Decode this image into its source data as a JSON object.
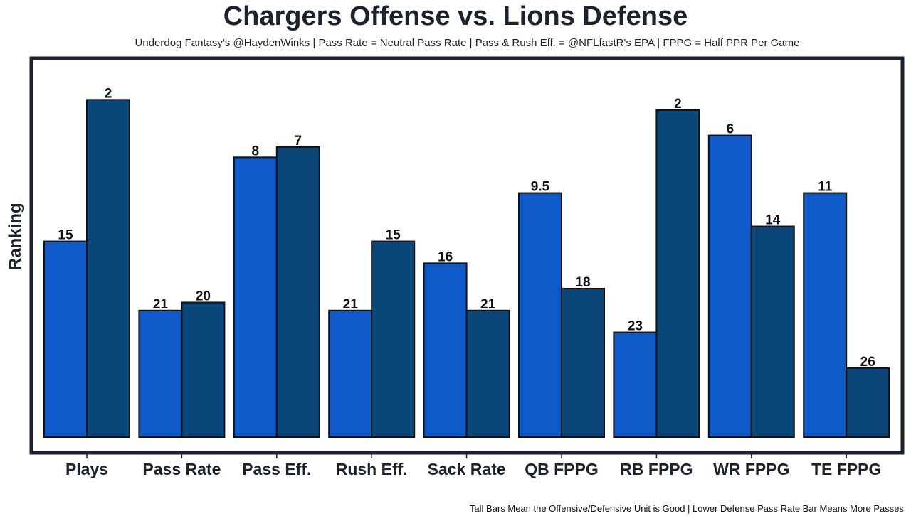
{
  "chart_data": {
    "type": "bar",
    "title": "Chargers Offense vs. Lions Defense",
    "subtitle": "Underdog Fantasy's @HaydenWinks | Pass Rate = Neutral Pass Rate | Pass & Rush Eff. = @NFLfastR's EPA | FPPG = Half PPR Per Game",
    "xlabel": "",
    "ylabel": "Ranking",
    "footnote": "Tall Bars Mean the Offensive/Defensive Unit is Good | Lower Defense Pass Rate Bar Means More Passes",
    "categories": [
      "Plays",
      "Pass Rate",
      "Pass Eff.",
      "Rush Eff.",
      "Sack Rate",
      "QB FPPG",
      "RB FPPG",
      "WR FPPG",
      "TE FPPG"
    ],
    "series": [
      {
        "name": "Chargers Offense",
        "color": "#0d5ac8",
        "labels": [
          "15",
          "21",
          "8",
          "21",
          "16",
          "9.5",
          "23",
          "6",
          "11"
        ],
        "values": [
          17,
          11,
          24.3,
          11,
          15.1,
          21.2,
          9.1,
          26.2,
          21.2
        ]
      },
      {
        "name": "Lions Defense",
        "color": "#0a4677",
        "labels": [
          "2",
          "20",
          "7",
          "15",
          "21",
          "18",
          "2",
          "14",
          "26"
        ],
        "values": [
          29.3,
          11.7,
          25.2,
          17,
          11,
          12.9,
          28.4,
          18.3,
          6
        ]
      }
    ],
    "ylim": [
      0,
      32.5
    ],
    "grid": false,
    "legend": "none",
    "colors": {
      "frame": "#1c222b",
      "bar_edge": "#111111",
      "text": "#1c222b"
    }
  }
}
